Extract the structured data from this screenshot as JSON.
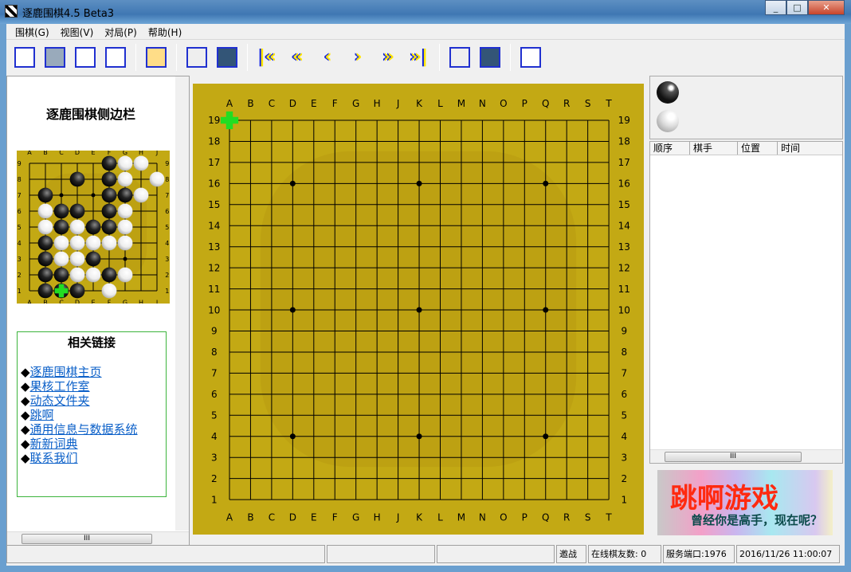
{
  "window": {
    "title": "逐鹿围棋4.5 Beta3",
    "controls": [
      "minimize",
      "maximize",
      "close"
    ]
  },
  "menu": [
    "围棋(G)",
    "视图(V)",
    "对局(P)",
    "帮助(H)"
  ],
  "toolbar": [
    {
      "icon": "board-grid-icon"
    },
    {
      "icon": "network-computers-icon"
    },
    {
      "icon": "load-file-icon"
    },
    {
      "icon": "save-file-icon"
    },
    "sep",
    {
      "icon": "gears-icon"
    },
    "sep",
    {
      "icon": "referee-icon"
    },
    {
      "icon": "handshake-icon"
    },
    "sep",
    {
      "icon": "first-move-icon",
      "glyph": "|«",
      "color": "#ffe600"
    },
    {
      "icon": "back-many-icon",
      "glyph": "«",
      "color": "#ffe600"
    },
    {
      "icon": "back-one-icon",
      "glyph": "‹",
      "color": "#ffe600"
    },
    {
      "icon": "forward-one-icon",
      "glyph": "›",
      "color": "#ffe600"
    },
    {
      "icon": "forward-many-icon",
      "glyph": "»",
      "color": "#ffe600"
    },
    {
      "icon": "last-move-icon",
      "glyph": "»|",
      "color": "#ffe600"
    },
    "sep",
    {
      "icon": "graph-analysis-icon"
    },
    {
      "icon": "stones-3d-icon"
    },
    "sep",
    {
      "icon": "board-edit-icon"
    }
  ],
  "sidebar": {
    "title": "逐鹿围棋侧边栏",
    "mini_board": {
      "cols": [
        "A",
        "B",
        "C",
        "D",
        "E",
        "F",
        "G",
        "H",
        "J"
      ],
      "rows": [
        "9",
        "8",
        "7",
        "6",
        "5",
        "4",
        "3",
        "2",
        "1"
      ],
      "stars": [
        "C7",
        "E7",
        "G3"
      ],
      "black": [
        "F9",
        "D8",
        "F8",
        "B7",
        "F7",
        "G7",
        "C6",
        "D6",
        "F6",
        "C5",
        "E5",
        "F5",
        "B4",
        "B3",
        "E3",
        "B2",
        "C2",
        "F2",
        "B1",
        "C1",
        "D1"
      ],
      "white": [
        "G9",
        "H9",
        "G8",
        "J8",
        "H7",
        "B6",
        "G6",
        "B5",
        "D5",
        "G5",
        "C4",
        "D4",
        "E4",
        "F4",
        "G4",
        "C3",
        "D3",
        "D2",
        "E2",
        "G2",
        "F1"
      ],
      "last_move": "C1"
    },
    "links_title": "相关链接",
    "links": [
      "逐鹿围棋主页",
      "果核工作室",
      "动态文件夹",
      "跳啊",
      "通用信息与数据系统",
      "新新词典",
      "联系我们"
    ]
  },
  "board": {
    "cols": [
      "A",
      "B",
      "C",
      "D",
      "E",
      "F",
      "G",
      "H",
      "J",
      "K",
      "L",
      "M",
      "N",
      "O",
      "P",
      "Q",
      "R",
      "S",
      "T"
    ],
    "rows": [
      "19",
      "18",
      "17",
      "16",
      "15",
      "14",
      "13",
      "12",
      "11",
      "10",
      "9",
      "8",
      "7",
      "6",
      "5",
      "4",
      "3",
      "2",
      "1"
    ],
    "stars": [
      "D16",
      "K16",
      "Q16",
      "D10",
      "K10",
      "Q10",
      "D4",
      "K4",
      "Q4"
    ],
    "cursor": "A19",
    "colors": {
      "board": "#c8ae14",
      "line": "#000000",
      "cursor": "#22dd22"
    }
  },
  "right": {
    "move_list_headers": [
      "顺序",
      "棋手",
      "位置",
      "时间"
    ],
    "ad": {
      "title": "跳啊游戏",
      "slogan": "曾经你是高手，现在呢？"
    }
  },
  "status": {
    "s1": "",
    "s2": "",
    "s3": "",
    "invite": "邀战",
    "online": "在线棋友数: 0",
    "port": "服务端口:1976",
    "datetime": "2016/11/26 11:00:07"
  }
}
